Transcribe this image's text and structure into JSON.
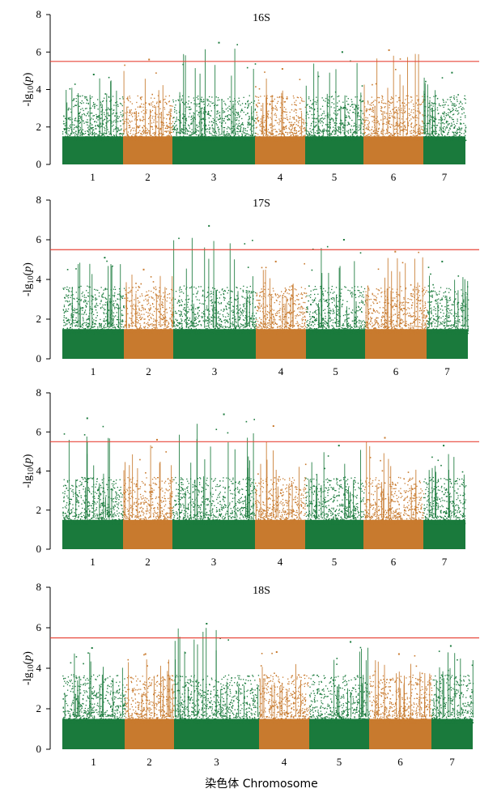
{
  "chart_data": [
    {
      "type": "scatter",
      "subtype": "manhattan",
      "title": "16S",
      "ylabel": "-lg10(p)",
      "xlabel": "",
      "ylim": [
        0,
        8
      ],
      "yticks": [
        0,
        2,
        4,
        6,
        8
      ],
      "threshold": 5.5,
      "categories": [
        "1",
        "2",
        "3",
        "4",
        "5",
        "6",
        "7"
      ],
      "series": [
        {
          "chromosome": "1",
          "color": "#1a7a3c",
          "peak": 4.8
        },
        {
          "chromosome": "2",
          "color": "#c87a2e",
          "peak": 5.6
        },
        {
          "chromosome": "3",
          "color": "#1a7a3c",
          "peak": 6.5
        },
        {
          "chromosome": "4",
          "color": "#c87a2e",
          "peak": 5.1
        },
        {
          "chromosome": "5",
          "color": "#1a7a3c",
          "peak": 6.0
        },
        {
          "chromosome": "6",
          "color": "#c87a2e",
          "peak": 6.1
        },
        {
          "chromosome": "7",
          "color": "#1a7a3c",
          "peak": 4.9
        }
      ]
    },
    {
      "type": "scatter",
      "subtype": "manhattan",
      "title": "17S",
      "ylabel": "-lg10(p)",
      "xlabel": "",
      "ylim": [
        0,
        8
      ],
      "yticks": [
        0,
        2,
        4,
        6,
        8
      ],
      "threshold": 5.5,
      "categories": [
        "1",
        "2",
        "3",
        "4",
        "5",
        "6",
        "7"
      ],
      "series": [
        {
          "chromosome": "1",
          "color": "#1a7a3c",
          "peak": 5.1
        },
        {
          "chromosome": "2",
          "color": "#c87a2e",
          "peak": 4.5
        },
        {
          "chromosome": "3",
          "color": "#1a7a3c",
          "peak": 6.7
        },
        {
          "chromosome": "4",
          "color": "#c87a2e",
          "peak": 4.9
        },
        {
          "chromosome": "5",
          "color": "#1a7a3c",
          "peak": 6.0
        },
        {
          "chromosome": "6",
          "color": "#c87a2e",
          "peak": 5.4
        },
        {
          "chromosome": "7",
          "color": "#1a7a3c",
          "peak": 4.9
        }
      ]
    },
    {
      "type": "scatter",
      "subtype": "manhattan",
      "title": "",
      "ylabel": "-lg10(p)",
      "xlabel": "",
      "ylim": [
        0,
        8
      ],
      "yticks": [
        0,
        2,
        4,
        6,
        8
      ],
      "threshold": 5.5,
      "categories": [
        "1",
        "2",
        "3",
        "4",
        "5",
        "6",
        "7"
      ],
      "series": [
        {
          "chromosome": "1",
          "color": "#1a7a3c",
          "peak": 6.7
        },
        {
          "chromosome": "2",
          "color": "#c87a2e",
          "peak": 5.6
        },
        {
          "chromosome": "3",
          "color": "#1a7a3c",
          "peak": 6.9
        },
        {
          "chromosome": "4",
          "color": "#c87a2e",
          "peak": 6.3
        },
        {
          "chromosome": "5",
          "color": "#1a7a3c",
          "peak": 5.3
        },
        {
          "chromosome": "6",
          "color": "#c87a2e",
          "peak": 5.7
        },
        {
          "chromosome": "7",
          "color": "#1a7a3c",
          "peak": 5.3
        }
      ]
    },
    {
      "type": "scatter",
      "subtype": "manhattan",
      "title": "18S",
      "ylabel": "-lg10(p)",
      "xlabel": "染色体 Chromosome",
      "ylim": [
        0,
        8
      ],
      "yticks": [
        0,
        2,
        4,
        6,
        8
      ],
      "threshold": 5.5,
      "categories": [
        "1",
        "2",
        "3",
        "4",
        "5",
        "6",
        "7"
      ],
      "series": [
        {
          "chromosome": "1",
          "color": "#1a7a3c",
          "peak": 5.0
        },
        {
          "chromosome": "2",
          "color": "#c87a2e",
          "peak": 4.7
        },
        {
          "chromosome": "3",
          "color": "#1a7a3c",
          "peak": 6.2
        },
        {
          "chromosome": "4",
          "color": "#c87a2e",
          "peak": 4.8
        },
        {
          "chromosome": "5",
          "color": "#1a7a3c",
          "peak": 5.3
        },
        {
          "chromosome": "6",
          "color": "#c87a2e",
          "peak": 4.7
        },
        {
          "chromosome": "7",
          "color": "#1a7a3c",
          "peak": 5.1
        }
      ]
    }
  ],
  "colors": {
    "threshold_line": "#e8463a",
    "axis": "#000000"
  }
}
